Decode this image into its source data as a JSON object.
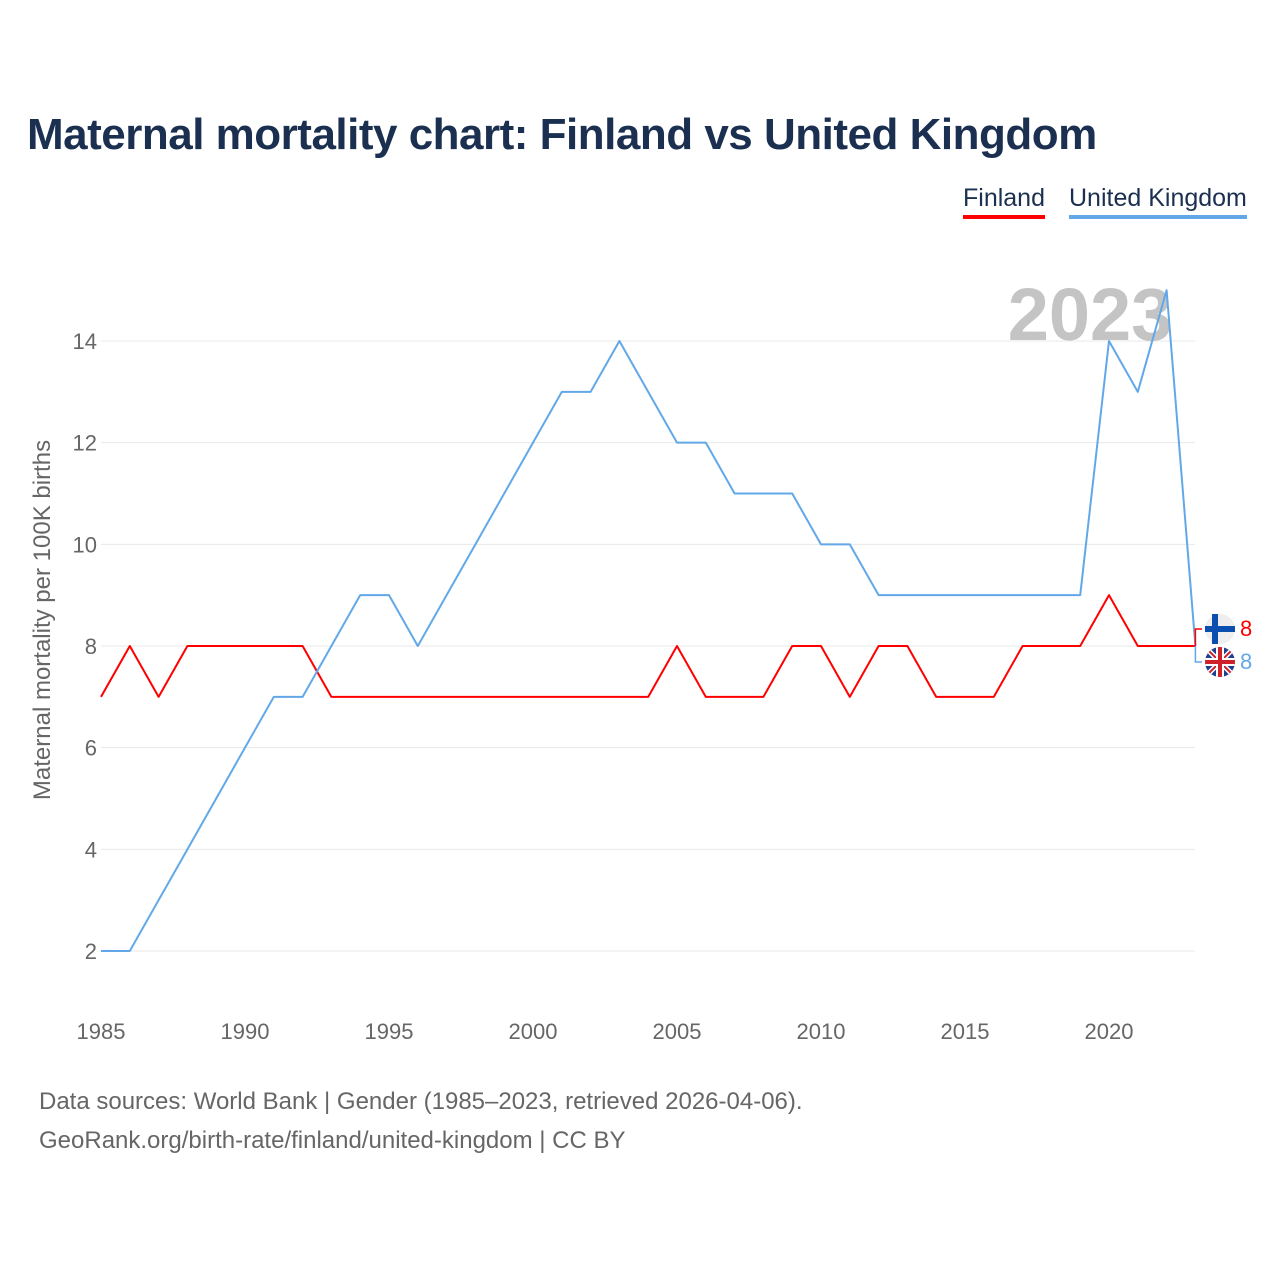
{
  "title": "Maternal mortality chart: Finland vs United Kingdom",
  "footer": {
    "line1": "Data sources: World Bank | Gender (1985–2023, retrieved 2026-04-06).",
    "line2": "GeoRank.org/birth-rate/finland/united-kingdom | CC BY"
  },
  "colors": {
    "finland": "#ff0000",
    "uk": "#62a8e8"
  },
  "chart_data": {
    "type": "line",
    "title": "Maternal mortality chart: Finland vs United Kingdom",
    "xlabel": "",
    "ylabel": "Maternal mortality per 100K births",
    "xlim": [
      1985,
      2023
    ],
    "ylim": [
      1,
      15
    ],
    "xticks": [
      1985,
      1990,
      1995,
      2000,
      2005,
      2010,
      2015,
      2020
    ],
    "yticks": [
      2,
      4,
      6,
      8,
      10,
      12,
      14
    ],
    "grid": true,
    "legend_position": "top-right",
    "year_label": "2023",
    "x": [
      1985,
      1986,
      1987,
      1988,
      1989,
      1990,
      1991,
      1992,
      1993,
      1994,
      1995,
      1996,
      1997,
      1998,
      1999,
      2000,
      2001,
      2002,
      2003,
      2004,
      2005,
      2006,
      2007,
      2008,
      2009,
      2010,
      2011,
      2012,
      2013,
      2014,
      2015,
      2016,
      2017,
      2018,
      2019,
      2020,
      2021,
      2022,
      2023
    ],
    "series": [
      {
        "name": "Finland",
        "end_label": "8",
        "values": [
          7,
          8,
          7,
          8,
          8,
          8,
          8,
          8,
          7,
          7,
          7,
          7,
          7,
          7,
          7,
          7,
          7,
          7,
          7,
          7,
          8,
          7,
          7,
          7,
          8,
          8,
          7,
          8,
          8,
          7,
          7,
          7,
          8,
          8,
          8,
          9,
          8,
          8,
          8
        ]
      },
      {
        "name": "United Kingdom",
        "end_label": "8",
        "values": [
          2,
          2,
          3,
          4,
          5,
          6,
          7,
          7,
          8,
          9,
          9,
          8,
          9,
          10,
          11,
          12,
          13,
          13,
          14,
          13,
          12,
          12,
          11,
          11,
          11,
          10,
          10,
          9,
          9,
          9,
          9,
          9,
          9,
          9,
          9,
          14,
          13,
          15,
          8
        ]
      }
    ]
  }
}
